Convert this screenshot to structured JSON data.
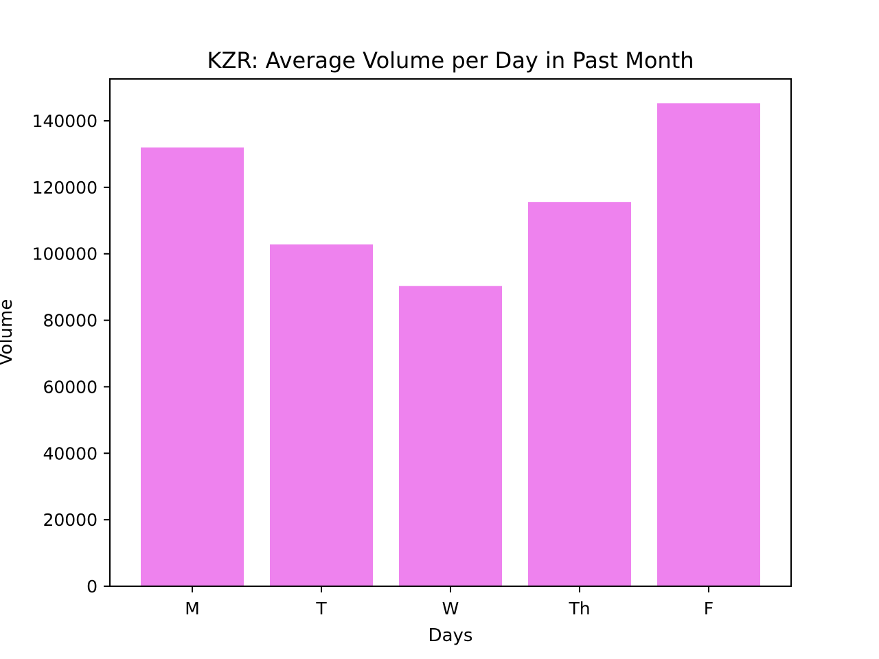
{
  "chart_data": {
    "type": "bar",
    "title": "KZR: Average Volume per Day in Past Month",
    "xlabel": "Days",
    "ylabel": "Volume",
    "categories": [
      "M",
      "T",
      "W",
      "Th",
      "F"
    ],
    "values": [
      132000,
      102800,
      90300,
      115600,
      145300
    ],
    "ylim": [
      0,
      152600
    ],
    "yticks": [
      0,
      20000,
      40000,
      60000,
      80000,
      100000,
      120000,
      140000
    ],
    "bar_color": "#ee82ee",
    "grid": false,
    "legend": false
  }
}
